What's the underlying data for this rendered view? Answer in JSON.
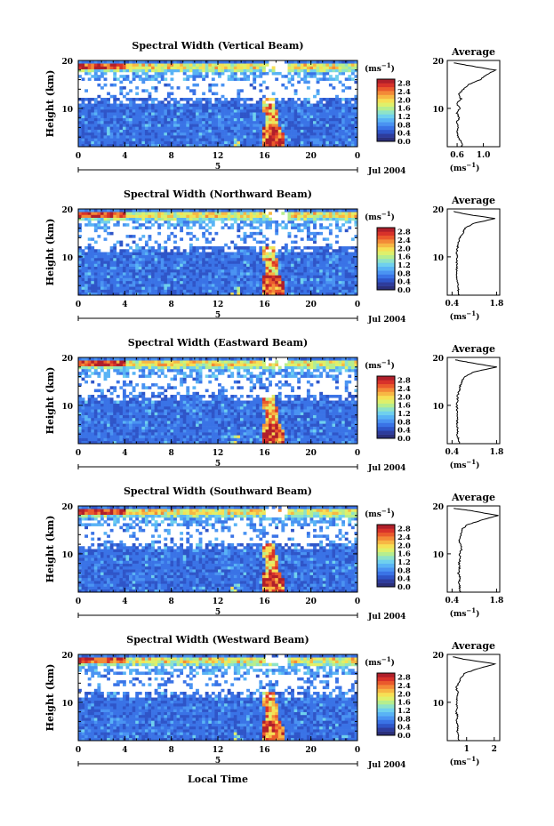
{
  "common": {
    "date_label": "Jul 2004",
    "xlabel": "Local Time",
    "ylabel": "Height (km)",
    "unit_label": "(ms",
    "unit_exp": "−1",
    "avg_title": "Average",
    "day_marker": "5",
    "colors": [
      "#2b2f7a",
      "#2e3c9c",
      "#2f55c8",
      "#3a73e6",
      "#4a93f2",
      "#59b3f5",
      "#6fd0ee",
      "#8ee3c8",
      "#b6ee8e",
      "#dff06a",
      "#f6e055",
      "#f7b744",
      "#f38a37",
      "#ea5a2c",
      "#d8322a",
      "#b01f2a"
    ]
  },
  "chart_data": [
    {
      "type": "heatmap",
      "title": "Spectral Width (Vertical Beam)",
      "x_ticks": [
        "0",
        "4",
        "8",
        "12",
        "16",
        "20",
        "0"
      ],
      "y_ticks": [
        "20",
        "10"
      ],
      "xlim": [
        0,
        24
      ],
      "ylim": [
        2,
        20
      ],
      "colorbar": {
        "labels": [
          "2.8",
          "2.4",
          "2.0",
          "1.6",
          "1.2",
          "0.8",
          "0.4",
          "0.0"
        ],
        "range": [
          0,
          3.0
        ]
      },
      "average": {
        "x_ticks": [
          "0.6",
          "1.0"
        ],
        "xlim": [
          0.45,
          1.25
        ],
        "y_ticks": [
          "20",
          "10"
        ],
        "height": [
          2,
          3,
          4,
          5,
          6,
          7,
          8,
          9,
          10,
          11,
          12,
          13,
          14,
          15,
          16,
          17,
          18,
          19,
          19.5
        ],
        "value": [
          0.68,
          0.66,
          0.62,
          0.6,
          0.62,
          0.59,
          0.63,
          0.6,
          0.64,
          0.6,
          0.66,
          0.62,
          0.7,
          0.78,
          0.95,
          1.05,
          1.18,
          0.75,
          0.55
        ]
      }
    },
    {
      "type": "heatmap",
      "title": "Spectral Width (Northward Beam)",
      "x_ticks": [
        "0",
        "4",
        "8",
        "12",
        "16",
        "20",
        "0"
      ],
      "y_ticks": [
        "20",
        "10"
      ],
      "xlim": [
        0,
        24
      ],
      "ylim": [
        2,
        20
      ],
      "colorbar": {
        "labels": [
          "2.8",
          "2.4",
          "2.0",
          "1.6",
          "1.2",
          "0.8",
          "0.4",
          "0.0"
        ],
        "range": [
          0,
          3.0
        ]
      },
      "average": {
        "x_ticks": [
          "0.4",
          "1.8"
        ],
        "xlim": [
          0.25,
          1.9
        ],
        "y_ticks": [
          "20",
          "10"
        ],
        "height": [
          2,
          3,
          4,
          5,
          6,
          7,
          8,
          9,
          10,
          11,
          12,
          13,
          14,
          15,
          16,
          17,
          18,
          19,
          19.5
        ],
        "value": [
          0.62,
          0.6,
          0.58,
          0.56,
          0.55,
          0.56,
          0.54,
          0.55,
          0.56,
          0.55,
          0.58,
          0.6,
          0.65,
          0.75,
          0.8,
          1.1,
          1.75,
          0.75,
          0.45
        ]
      }
    },
    {
      "type": "heatmap",
      "title": "Spectral Width (Eastward Beam)",
      "x_ticks": [
        "0",
        "4",
        "8",
        "12",
        "16",
        "20",
        "0"
      ],
      "y_ticks": [
        "20",
        "10"
      ],
      "xlim": [
        0,
        24
      ],
      "ylim": [
        2,
        20
      ],
      "colorbar": {
        "labels": [
          "2.8",
          "2.4",
          "2.0",
          "1.6",
          "1.2",
          "0.8",
          "0.4",
          "0.0"
        ],
        "range": [
          0,
          3.0
        ]
      },
      "average": {
        "x_ticks": [
          "0.4",
          "1.8"
        ],
        "xlim": [
          0.25,
          1.9
        ],
        "y_ticks": [
          "20",
          "10"
        ],
        "height": [
          2,
          3,
          4,
          5,
          6,
          7,
          8,
          9,
          10,
          11,
          12,
          13,
          14,
          15,
          16,
          17,
          18,
          19,
          19.5
        ],
        "value": [
          0.62,
          0.6,
          0.56,
          0.58,
          0.55,
          0.57,
          0.55,
          0.56,
          0.55,
          0.57,
          0.58,
          0.62,
          0.66,
          0.7,
          0.8,
          1.1,
          1.8,
          0.9,
          0.5
        ]
      }
    },
    {
      "type": "heatmap",
      "title": "Spectral Width (Southward Beam)",
      "x_ticks": [
        "0",
        "4",
        "8",
        "12",
        "16",
        "20",
        "0"
      ],
      "y_ticks": [
        "20",
        "10"
      ],
      "xlim": [
        0,
        24
      ],
      "ylim": [
        2,
        20
      ],
      "colorbar": {
        "labels": [
          "2.8",
          "2.4",
          "2.0",
          "1.6",
          "1.2",
          "0.8",
          "0.4",
          "0.0"
        ],
        "range": [
          0,
          3.0
        ]
      },
      "average": {
        "x_ticks": [
          "0.4",
          "1.8"
        ],
        "xlim": [
          0.25,
          1.9
        ],
        "y_ticks": [
          "20",
          "10"
        ],
        "height": [
          2,
          3,
          4,
          5,
          6,
          7,
          8,
          9,
          10,
          11,
          12,
          13,
          14,
          15,
          16,
          17,
          18,
          19,
          19.5
        ],
        "value": [
          0.66,
          0.64,
          0.62,
          0.66,
          0.6,
          0.64,
          0.62,
          0.66,
          0.64,
          0.7,
          0.66,
          0.62,
          0.68,
          0.7,
          0.86,
          1.3,
          1.85,
          1.0,
          0.45
        ]
      }
    },
    {
      "type": "heatmap",
      "title": "Spectral Width (Westward Beam)",
      "x_ticks": [
        "0",
        "4",
        "8",
        "12",
        "16",
        "20",
        "0"
      ],
      "y_ticks": [
        "20",
        "10"
      ],
      "xlim": [
        0,
        24
      ],
      "ylim": [
        2,
        20
      ],
      "colorbar": {
        "labels": [
          "2.8",
          "2.4",
          "2.0",
          "1.6",
          "1.2",
          "0.8",
          "0.4",
          "0.0"
        ],
        "range": [
          0,
          3.0
        ]
      },
      "average": {
        "x_ticks": [
          "1",
          "2"
        ],
        "xlim": [
          0.3,
          2.2
        ],
        "y_ticks": [
          "20",
          "10"
        ],
        "height": [
          2,
          3,
          4,
          5,
          6,
          7,
          8,
          9,
          10,
          11,
          12,
          13,
          14,
          15,
          16,
          17,
          18,
          19,
          19.5
        ],
        "value": [
          0.72,
          0.7,
          0.66,
          0.7,
          0.64,
          0.68,
          0.62,
          0.66,
          0.64,
          0.66,
          0.7,
          0.62,
          0.7,
          0.78,
          0.9,
          1.4,
          2.05,
          0.9,
          0.5
        ]
      }
    }
  ]
}
